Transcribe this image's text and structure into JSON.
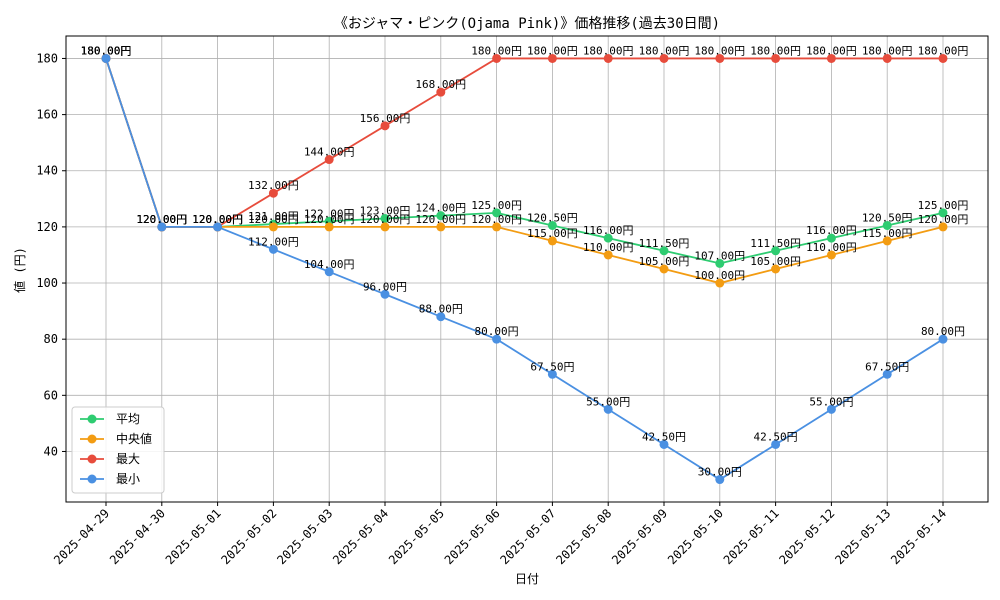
{
  "chart_data": {
    "type": "line",
    "title": "《おジャマ・ピンク(Ojama Pink)》価格推移(過去30日間)",
    "xlabel": "日付",
    "ylabel": "値 (円)",
    "categories": [
      "2025-04-29",
      "2025-04-30",
      "2025-05-01",
      "2025-05-02",
      "2025-05-03",
      "2025-05-04",
      "2025-05-05",
      "2025-05-06",
      "2025-05-07",
      "2025-05-08",
      "2025-05-09",
      "2025-05-10",
      "2025-05-11",
      "2025-05-12",
      "2025-05-13",
      "2025-05-14"
    ],
    "ylim": [
      22,
      188
    ],
    "yticks": [
      40,
      60,
      80,
      100,
      120,
      140,
      160,
      180
    ],
    "grid": true,
    "legend_position": "lower-left",
    "label_suffix": "円",
    "series": [
      {
        "name": "平均",
        "color": "#2ecc71",
        "values": [
          180,
          120,
          120,
          121,
          122,
          123,
          124,
          125,
          120.5,
          116,
          111.5,
          107,
          111.5,
          116,
          120.5,
          125
        ]
      },
      {
        "name": "中央値",
        "color": "#f39c12",
        "values": [
          180,
          120,
          120,
          120,
          120,
          120,
          120,
          120,
          115,
          110,
          105,
          100,
          105,
          110,
          115,
          120
        ]
      },
      {
        "name": "最大",
        "color": "#e74c3c",
        "values": [
          180,
          120,
          120,
          132,
          144,
          156,
          168,
          180,
          180,
          180,
          180,
          180,
          180,
          180,
          180,
          180
        ]
      },
      {
        "name": "最小",
        "color": "#4a90e2",
        "values": [
          180,
          120,
          120,
          112,
          104,
          96,
          88,
          80,
          67.5,
          55,
          42.5,
          30,
          42.5,
          55,
          67.5,
          80
        ]
      }
    ]
  }
}
